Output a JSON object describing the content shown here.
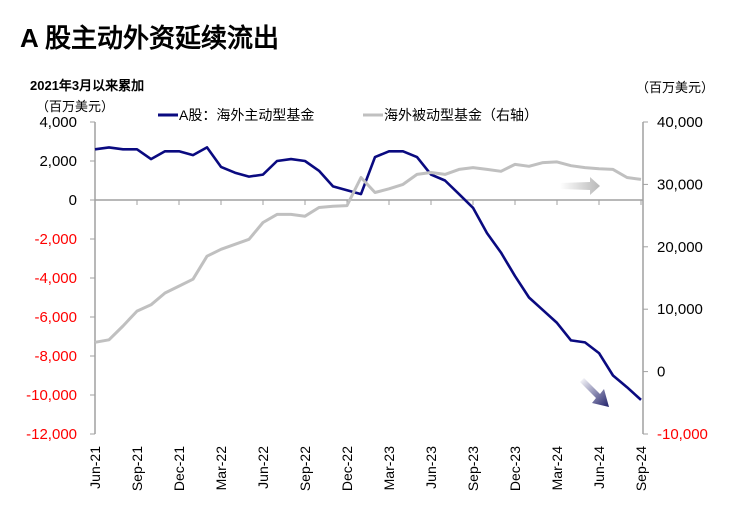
{
  "chart_data": {
    "type": "line",
    "title": "A 股主动外资延续流出",
    "subtitle": "2021年3月以来累加",
    "ylabel": "（百万美元）",
    "y2label": "（百万美元）",
    "x": [
      "Jun-21",
      "Jul-21",
      "Aug-21",
      "Sep-21",
      "Oct-21",
      "Nov-21",
      "Dec-21",
      "Jan-22",
      "Feb-22",
      "Mar-22",
      "Apr-22",
      "May-22",
      "Jun-22",
      "Jul-22",
      "Aug-22",
      "Sep-22",
      "Oct-22",
      "Nov-22",
      "Dec-22",
      "Jan-23",
      "Feb-23",
      "Mar-23",
      "Apr-23",
      "May-23",
      "Jun-23",
      "Jul-23",
      "Aug-23",
      "Sep-23",
      "Oct-23",
      "Nov-23",
      "Dec-23",
      "Jan-24",
      "Feb-24",
      "Mar-24",
      "Apr-24",
      "May-24",
      "Jun-24",
      "Jul-24",
      "Aug-24",
      "Sep-24"
    ],
    "xticks": [
      "Jun-21",
      "Sep-21",
      "Dec-21",
      "Mar-22",
      "Jun-22",
      "Sep-22",
      "Dec-22",
      "Mar-23",
      "Jun-23",
      "Sep-23",
      "Dec-23",
      "Mar-24",
      "Jun-24",
      "Sep-24"
    ],
    "ylim": [
      -12000,
      4000
    ],
    "yticks": [
      4000,
      2000,
      0,
      -2000,
      -4000,
      -6000,
      -8000,
      -10000,
      -12000
    ],
    "ytick_labels": [
      "4,000",
      "2,000",
      "0",
      "-2,000",
      "-4,000",
      "-6,000",
      "-8,000",
      "-10,000",
      "-12,000"
    ],
    "y2lim": [
      -10000,
      40000
    ],
    "y2ticks": [
      40000,
      30000,
      20000,
      10000,
      0,
      -10000
    ],
    "y2tick_labels": [
      "40,000",
      "30,000",
      "20,000",
      "10,000",
      "0",
      "-10,000"
    ],
    "legend_position": "top",
    "grid": false,
    "series": [
      {
        "name": "A股：海外主动型基金",
        "axis": "left",
        "color": "#0a0a80",
        "values": [
          2600,
          2700,
          2600,
          2600,
          2100,
          2500,
          2500,
          2300,
          2700,
          1700,
          1400,
          1200,
          1300,
          2000,
          2100,
          2000,
          1500,
          700,
          500,
          300,
          2200,
          2500,
          2500,
          2200,
          1300,
          1000,
          300,
          -400,
          -1700,
          -2700,
          -3900,
          -5000,
          -5650,
          -6300,
          -7200,
          -7300,
          -7850,
          -9000,
          -9600,
          -10250
        ]
      },
      {
        "name": "海外被动型基金（右轴）",
        "axis": "right",
        "color": "#c0c0c0",
        "values": [
          4700,
          5100,
          7300,
          9700,
          10700,
          12600,
          13700,
          14800,
          18500,
          19600,
          20400,
          21200,
          23900,
          25200,
          25200,
          24900,
          26300,
          26500,
          26600,
          31100,
          28700,
          29300,
          30000,
          31600,
          31900,
          31600,
          32400,
          32700,
          32400,
          32100,
          33200,
          32900,
          33500,
          33600,
          33000,
          32700,
          32500,
          32400,
          31100,
          30800
        ]
      }
    ],
    "negative_tick_color": "#ff0000"
  }
}
